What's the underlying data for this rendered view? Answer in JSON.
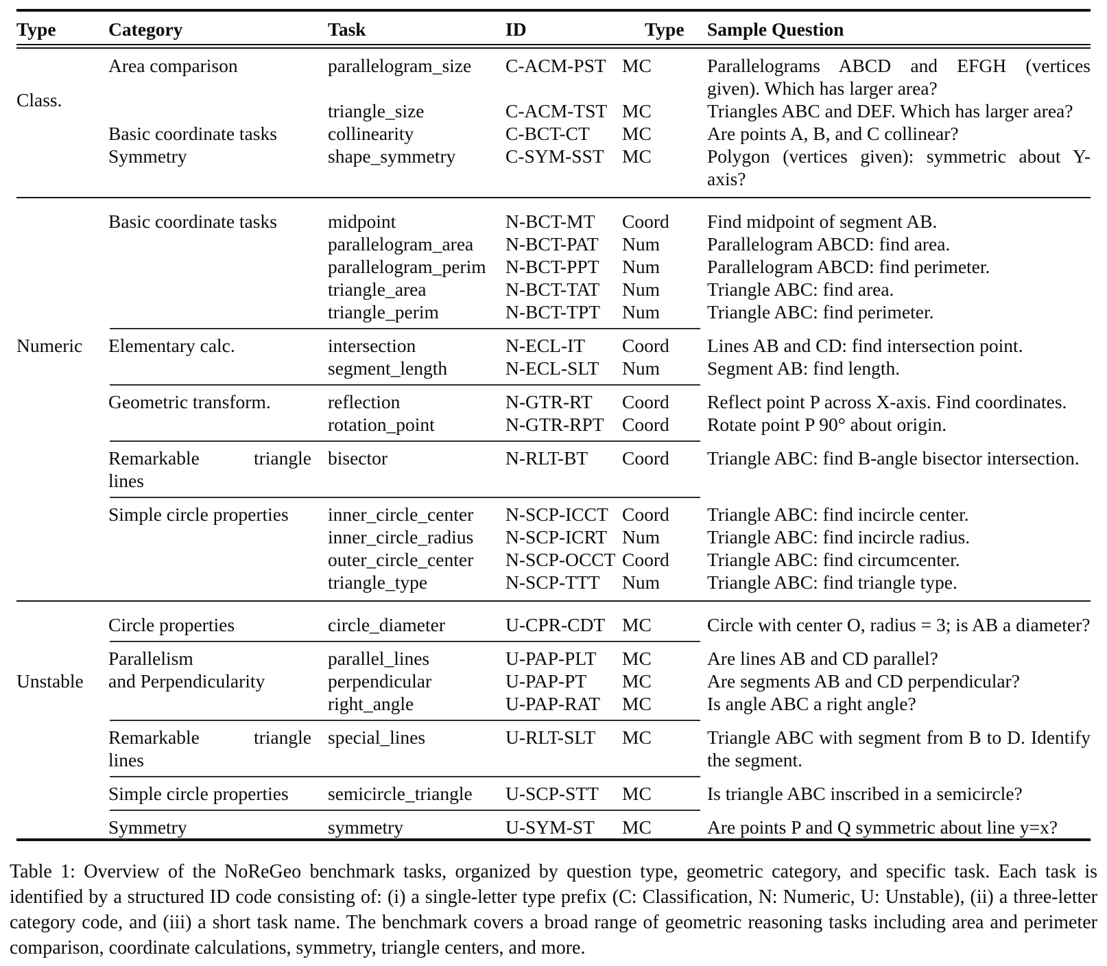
{
  "table": {
    "headers": [
      "Type",
      "Category",
      "Task",
      "ID",
      "Type",
      "Sample Question"
    ],
    "rows": [
      {
        "cells": [
          "",
          "Area comparison",
          "parallelogram_size",
          "C-ACM-PST",
          "MC",
          [
            "Parallelograms ABCD and EFGH (vertices",
            "given). Which has larger area?"
          ]
        ]
      },
      {
        "cells": [
          "Class.",
          "",
          "triangle_size",
          "C-ACM-TST",
          "MC",
          "Triangles ABC and DEF. Which has larger area?"
        ]
      },
      {
        "cells": [
          "",
          "Basic coordinate tasks",
          "collinearity",
          "C-BCT-CT",
          "MC",
          "Are points A, B, and C collinear?"
        ]
      },
      {
        "cells": [
          "",
          "Symmetry",
          "shape_symmetry",
          "C-SYM-SST",
          "MC",
          [
            "Polygon (vertices given): symmetric about Y-",
            "axis?"
          ]
        ]
      },
      {
        "sep": "section"
      },
      {
        "cells": [
          "",
          "Basic coordinate tasks",
          "midpoint",
          "N-BCT-MT",
          "Coord",
          "Find midpoint of segment AB."
        ]
      },
      {
        "cells": [
          "",
          "",
          "parallelogram_area",
          "N-BCT-PAT",
          "Num",
          "Parallelogram ABCD: find area."
        ]
      },
      {
        "cells": [
          "",
          "",
          "parallelogram_perim",
          "N-BCT-PPT",
          "Num",
          "Parallelogram ABCD: find perimeter."
        ]
      },
      {
        "cells": [
          "",
          "",
          "triangle_area",
          "N-BCT-TAT",
          "Num",
          "Triangle ABC: find area."
        ]
      },
      {
        "cells": [
          "",
          "",
          "triangle_perim",
          "N-BCT-TPT",
          "Num",
          "Triangle ABC: find perimeter."
        ]
      },
      {
        "sep": "group"
      },
      {
        "cells": [
          "Numeric",
          "Elementary calc.",
          "intersection",
          "N-ECL-IT",
          "Coord",
          "Lines AB and CD: find intersection point."
        ]
      },
      {
        "cells": [
          "",
          "",
          "segment_length",
          "N-ECL-SLT",
          "Num",
          "Segment AB: find length."
        ]
      },
      {
        "sep": "group"
      },
      {
        "cells": [
          "",
          "Geometric transform.",
          "reflection",
          "N-GTR-RT",
          "Coord",
          "Reflect point P across X-axis. Find coordinates."
        ]
      },
      {
        "cells": [
          "",
          "",
          "rotation_point",
          "N-GTR-RPT",
          "Coord",
          "Rotate point P 90° about origin."
        ]
      },
      {
        "sep": "group"
      },
      {
        "cells": [
          "",
          [
            "Remarkable triangle",
            "lines"
          ],
          "bisector",
          "N-RLT-BT",
          "Coord",
          "Triangle ABC: find B-angle bisector intersection."
        ]
      },
      {
        "sep": "group"
      },
      {
        "cells": [
          "",
          "Simple circle properties",
          "inner_circle_center",
          "N-SCP-ICCT",
          "Coord",
          "Triangle ABC: find incircle center."
        ]
      },
      {
        "cells": [
          "",
          "",
          "inner_circle_radius",
          "N-SCP-ICRT",
          "Num",
          "Triangle ABC: find incircle radius."
        ]
      },
      {
        "cells": [
          "",
          "",
          "outer_circle_center",
          "N-SCP-OCCT",
          "Coord",
          "Triangle ABC: find circumcenter."
        ]
      },
      {
        "cells": [
          "",
          "",
          "triangle_type",
          "N-SCP-TTT",
          "Num",
          "Triangle ABC: find triangle type."
        ]
      },
      {
        "sep": "section"
      },
      {
        "cells": [
          "",
          "Circle properties",
          "circle_diameter",
          "U-CPR-CDT",
          "MC",
          "Circle with center O, radius = 3; is AB a diameter?"
        ]
      },
      {
        "sep": "group"
      },
      {
        "cells": [
          "",
          "Parallelism",
          "parallel_lines",
          "U-PAP-PLT",
          "MC",
          "Are lines AB and CD parallel?"
        ]
      },
      {
        "cells": [
          "Unstable",
          "and Perpendicularity",
          "perpendicular",
          "U-PAP-PT",
          "MC",
          "Are segments AB and CD perpendicular?"
        ]
      },
      {
        "cells": [
          "",
          "",
          "right_angle",
          "U-PAP-RAT",
          "MC",
          "Is angle ABC a right angle?"
        ]
      },
      {
        "sep": "group"
      },
      {
        "cells": [
          "",
          [
            "Remarkable triangle",
            "lines"
          ],
          "special_lines",
          "U-RLT-SLT",
          "MC",
          [
            "Triangle ABC with segment from B to D. Identify",
            "the segment."
          ]
        ]
      },
      {
        "sep": "group"
      },
      {
        "cells": [
          "",
          "Simple circle properties",
          "semicircle_triangle",
          "U-SCP-STT",
          "MC",
          "Is triangle ABC inscribed in a semicircle?"
        ]
      },
      {
        "sep": "group"
      },
      {
        "cells": [
          "",
          "Symmetry",
          "symmetry",
          "U-SYM-ST",
          "MC",
          "Are points P and Q symmetric about line y=x?"
        ]
      }
    ]
  },
  "caption": {
    "text": "Table 1: Overview of the NoReGeo benchmark tasks, organized by question type, geometric category, and specific task. Each task is identified by a structured ID code consisting of: (i) a single-letter type prefix (C: Classification, N: Numeric, U: Unstable), (ii) a three-letter category code, and (iii) a short task name. The benchmark covers a broad range of geometric reasoning tasks including area and perimeter comparison, coordinate calculations, symmetry, triangle centers, and more."
  }
}
